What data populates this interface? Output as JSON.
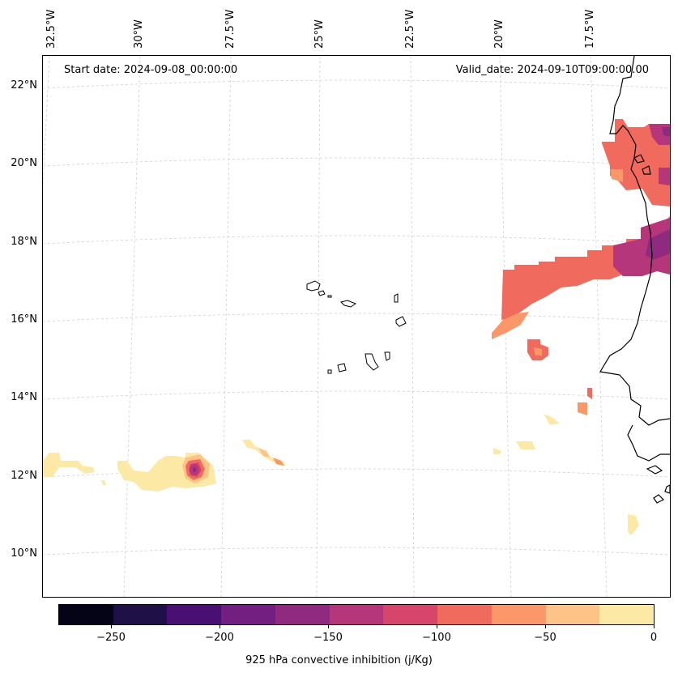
{
  "map": {
    "start_label": "Start date: 2024-09-08_00:00:00",
    "valid_label": "Valid_date: 2024-09-10T09:00:00.00",
    "lat_labels": [
      "22°N",
      "20°N",
      "18°N",
      "16°N",
      "14°N",
      "12°N",
      "10°N"
    ],
    "lon_labels": [
      "32.5°W",
      "30°W",
      "27.5°W",
      "25°W",
      "22.5°W",
      "20°W",
      "17.5°W"
    ],
    "field_name": "925 hPa convective inhibition",
    "units": "j/Kg"
  },
  "colorbar": {
    "label": "925 hPa convective inhibition (j/Kg)",
    "ticks": [
      "−250",
      "−200",
      "−150",
      "−100",
      "−50",
      "0"
    ],
    "tick_values": [
      -250,
      -200,
      -150,
      -100,
      -50,
      0
    ],
    "min": -275,
    "max": 0,
    "colors": [
      "#050416",
      "#1f1147",
      "#4a0f73",
      "#721f81",
      "#902a80",
      "#b5367a",
      "#d8456c",
      "#f06b5e",
      "#fb9768",
      "#fec387",
      "#fde9a6"
    ]
  }
}
